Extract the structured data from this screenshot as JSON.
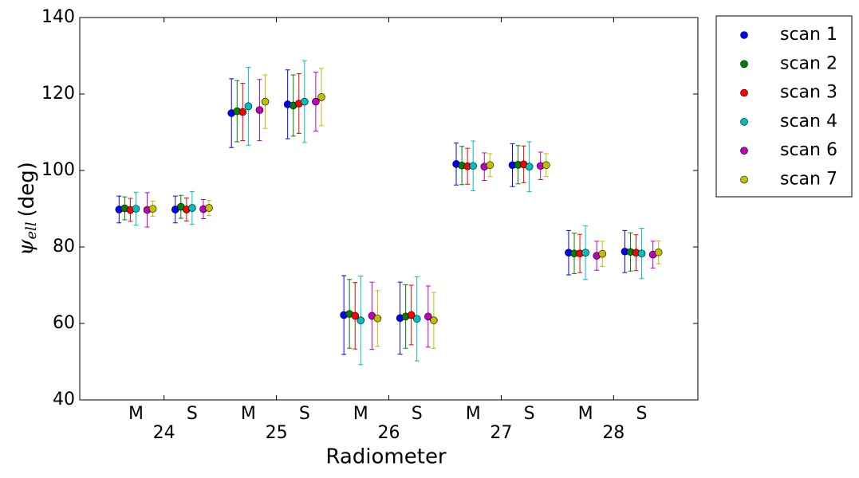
{
  "chart_data": {
    "type": "errorbar",
    "ylabel_symbol": "ψ",
    "ylabel_subscript": "ell",
    "ylabel_unit": "(deg)",
    "xlabel": "Radiometer",
    "categories": [
      "M",
      "S",
      "M",
      "S",
      "M",
      "S",
      "M",
      "S",
      "M",
      "S"
    ],
    "groups": [
      "24",
      "25",
      "26",
      "27",
      "28"
    ],
    "ylim": [
      40,
      140
    ],
    "yticks": [
      40,
      60,
      80,
      100,
      120,
      140
    ],
    "legend": "outside-upper-right",
    "series": [
      {
        "name": "scan 1",
        "color": "#0000ff",
        "values": [
          89.8,
          89.8,
          115,
          117.3,
          62.2,
          61.4,
          101.7,
          101.4,
          78.5,
          78.8
        ],
        "errors": [
          3.5,
          3.5,
          9,
          9,
          10.3,
          9.4,
          5.5,
          5.6,
          5.8,
          5.5
        ]
      },
      {
        "name": "scan 2",
        "color": "#008000",
        "values": [
          90.1,
          90.5,
          115.5,
          117,
          62.5,
          61.8,
          101.3,
          101.5,
          78.3,
          78.7
        ],
        "errors": [
          3,
          3,
          8,
          8,
          9,
          8.3,
          5,
          5,
          5.3,
          5
        ]
      },
      {
        "name": "scan 3",
        "color": "#ff0000",
        "values": [
          89.7,
          89.8,
          115.3,
          117.5,
          62,
          62.2,
          101.1,
          101.6,
          78.3,
          78.5
        ],
        "errors": [
          3,
          3,
          7.5,
          7.8,
          8.7,
          7.8,
          4.7,
          4.8,
          5,
          4.7
        ]
      },
      {
        "name": "scan 4",
        "color": "#00bfbf",
        "values": [
          90,
          90.2,
          116.8,
          118,
          60.8,
          61.2,
          101.2,
          101,
          78.5,
          78.3
        ],
        "errors": [
          4.3,
          4.3,
          10.2,
          10.7,
          11.6,
          11,
          6.5,
          6.5,
          7,
          6.6
        ]
      },
      {
        "name": "scan 6",
        "color": "#bf00bf",
        "values": [
          89.7,
          89.9,
          115.8,
          118,
          62,
          61.8,
          101,
          101.2,
          77.7,
          78
        ],
        "errors": [
          4.5,
          2.5,
          8,
          7.7,
          8.8,
          8,
          3.6,
          3.6,
          3.8,
          3.5
        ]
      },
      {
        "name": "scan 7",
        "color": "#bfbf00",
        "values": [
          90,
          90.2,
          118,
          119.2,
          61.3,
          60.8,
          101.4,
          101.4,
          78.2,
          78.6
        ],
        "errors": [
          2,
          2,
          7,
          7.5,
          7.3,
          7.3,
          3,
          3,
          3.3,
          3
        ]
      }
    ]
  }
}
